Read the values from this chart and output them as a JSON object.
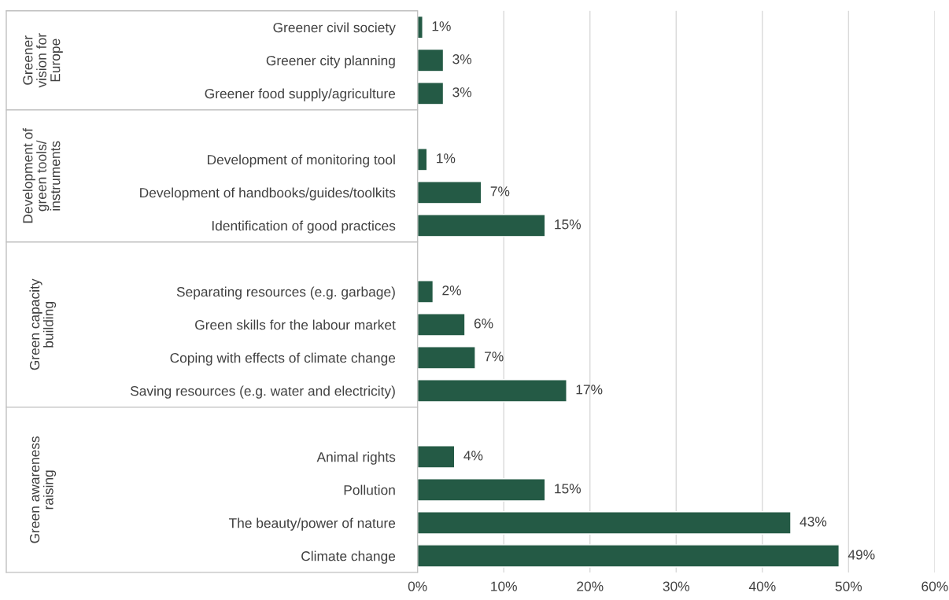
{
  "chart_data": {
    "type": "bar",
    "orientation": "horizontal",
    "categories": [
      "Greener civil society",
      "Greener city planning",
      "Greener food supply/agriculture",
      null,
      "Development of monitoring tool",
      "Development of handbooks/guides/toolkits",
      "Identification of good practices",
      null,
      "Separating resources (e.g. garbage)",
      "Green skills for the labour market",
      "Coping with effects of climate change",
      "Saving resources (e.g. water and electricity)",
      null,
      "Animal rights",
      "Pollution",
      "The beauty/power of nature",
      "Climate change"
    ],
    "values": [
      0.6,
      3.0,
      3.0,
      null,
      1.1,
      7.4,
      14.8,
      null,
      1.8,
      5.5,
      6.7,
      17.3,
      null,
      4.3,
      14.8,
      43.3,
      48.9
    ],
    "value_labels": [
      "1%",
      "3%",
      "3%",
      null,
      "1%",
      "7%",
      "15%",
      null,
      "2%",
      "6%",
      "7%",
      "17%",
      null,
      "4%",
      "15%",
      "43%",
      "49%"
    ],
    "color": "#245a45",
    "xlim": [
      0,
      60
    ],
    "xticks": [
      {
        "value": 0,
        "label": "0%"
      },
      {
        "value": 10,
        "label": "10%"
      },
      {
        "value": 20,
        "label": "20%"
      },
      {
        "value": 30,
        "label": "30%"
      },
      {
        "value": 40,
        "label": "40%"
      },
      {
        "value": 50,
        "label": "50%"
      },
      {
        "value": 60,
        "label": "60%"
      }
    ],
    "grid": "x",
    "legend": false,
    "annotations": [
      "Greener\nvision for\nEurope",
      "Development of\ngreen tools/\ninstruments",
      "Green capacity\nbuilding",
      "Green awareness\nraising"
    ]
  }
}
